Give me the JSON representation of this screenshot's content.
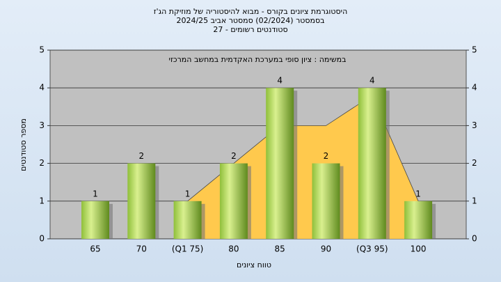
{
  "chart_data": {
    "type": "bar",
    "title": [
      "היסטוגרמת ציונים בקורס - מבוא להיסטוריה של מוזיקת הג'ז",
      "בסמסטר  (02/2024)  סמסטר אביב 2024/25",
      "סטודנטים רשומים - 27"
    ],
    "annotation": "במשימה : ציון סופי במערכת האקדמית במחשב המרכזי",
    "x_label": "טווח ציונים",
    "y_label": "מספר סטודנטים",
    "categories": [
      "65",
      "70",
      "(Q1 75)",
      "80",
      "85",
      "90",
      "(Q3 95)",
      "100"
    ],
    "series": [
      {
        "color": "#9fcc4a",
        "values": [
          1,
          2,
          1,
          2,
          4,
          2,
          4,
          1
        ]
      }
    ],
    "area": {
      "color": "#ffc94d",
      "values": [
        null,
        null,
        1,
        2,
        3,
        3,
        3.8,
        1
      ]
    },
    "ylim": [
      0,
      5
    ],
    "yticks": [
      0,
      1,
      2,
      3,
      4,
      5
    ],
    "y2lim": [
      0,
      5
    ],
    "y2ticks": [
      0,
      1,
      2,
      3,
      4,
      5
    ],
    "grid": true
  }
}
